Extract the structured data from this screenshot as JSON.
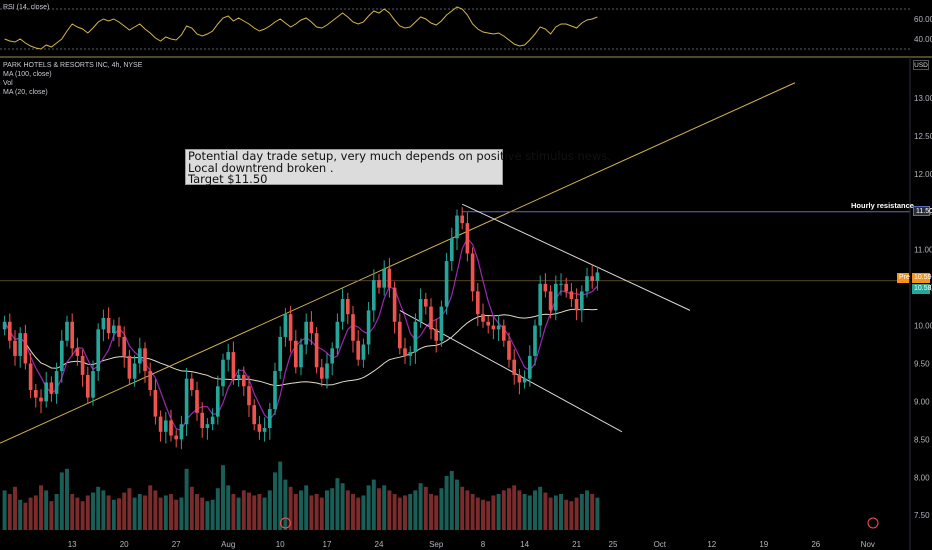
{
  "rsi": {
    "label": "RSI (14, close)",
    "ticks": [
      "60.00",
      "40.00"
    ],
    "tick_values": [
      60,
      40
    ],
    "ylim": [
      25,
      75
    ],
    "color": "#d4b44c",
    "values": [
      40,
      38,
      37,
      40,
      36,
      33,
      31,
      30,
      34,
      32,
      36,
      40,
      48,
      55,
      52,
      50,
      46,
      51,
      57,
      60,
      58,
      60,
      57,
      53,
      49,
      52,
      55,
      50,
      46,
      41,
      38,
      42,
      40,
      39,
      44,
      53,
      51,
      45,
      43,
      45,
      48,
      55,
      61,
      63,
      58,
      61,
      58,
      55,
      51,
      48,
      50,
      53,
      57,
      60,
      56,
      52,
      55,
      59,
      61,
      57,
      52,
      51,
      54,
      58,
      62,
      66,
      62,
      57,
      55,
      57,
      63,
      68,
      66,
      70,
      66,
      59,
      53,
      51,
      52,
      57,
      62,
      60,
      56,
      54,
      58,
      64,
      68,
      72,
      70,
      64,
      55,
      50,
      47,
      46,
      45,
      46,
      43,
      39,
      35,
      33,
      34,
      39,
      45,
      52,
      50,
      45,
      52,
      55,
      55,
      53,
      51,
      56,
      59,
      60,
      62
    ],
    "levels": [
      70,
      30
    ]
  },
  "legend": {
    "title": "PARK HOTELS & RESORTS INC, 4h, NYSE",
    "items": [
      "MA (100, close)",
      "Vol",
      "MA (20, close)"
    ]
  },
  "annotation": {
    "lines": [
      "Potential day trade setup, very much depends on positive stimulus news.",
      "Local downtrend broken .",
      "Target $11.50"
    ]
  },
  "resistance": {
    "label": "Hourly resistance",
    "price": "11.50",
    "value": 11.5
  },
  "price_tags": {
    "current": "10.59",
    "current_prefix": "Pre",
    "current_value": 10.59,
    "second": "10.58",
    "second_value": 10.58,
    "currency": "USD"
  },
  "colors": {
    "up": "#26a69a",
    "down": "#ef5350",
    "vol_up": "#1a5e58",
    "vol_down": "#7a2b2b",
    "ma20": "#9c27b0",
    "ma100": "#e0dcc8",
    "trend": "#d4b44c",
    "resistance": "#5c6bc0",
    "channel": "#d8d8d8",
    "tag_current": "#f7931a",
    "tag_second": "#26a69a"
  },
  "chart_data": {
    "type": "candlestick",
    "ylim": [
      7.2,
      13.5
    ],
    "y_ticks": [
      "13.00",
      "12.50",
      "12.00",
      "11.50",
      "11.00",
      "10.50",
      "10.00",
      "9.50",
      "9.00",
      "8.50",
      "8.00",
      "7.50"
    ],
    "y_tick_values": [
      13.0,
      12.5,
      12.0,
      11.5,
      11.0,
      10.5,
      10.0,
      9.5,
      9.0,
      8.5,
      8.0,
      7.5
    ],
    "x_ticks": [
      "13",
      "20",
      "27",
      "Aug",
      "10",
      "17",
      "24",
      "Sep",
      "8",
      "14",
      "21",
      "25",
      "Oct",
      "12",
      "19",
      "26",
      "Nov"
    ],
    "x_tick_bars": [
      13,
      23,
      33,
      43,
      53,
      62,
      72,
      83,
      92,
      100,
      110,
      117,
      126,
      136,
      146,
      156,
      166
    ],
    "total_slots": 175,
    "close": [
      10.05,
      9.8,
      9.6,
      9.9,
      9.5,
      9.15,
      9.05,
      9.0,
      9.25,
      9.1,
      9.4,
      9.8,
      10.05,
      9.7,
      9.6,
      9.35,
      9.05,
      9.4,
      9.95,
      10.1,
      9.9,
      10.0,
      9.85,
      9.6,
      9.3,
      9.5,
      9.7,
      9.4,
      9.15,
      8.8,
      8.6,
      8.75,
      8.55,
      8.5,
      8.7,
      9.3,
      9.15,
      8.85,
      8.65,
      8.7,
      8.8,
      9.2,
      9.55,
      9.65,
      9.3,
      9.35,
      9.2,
      8.95,
      8.7,
      8.6,
      8.65,
      8.9,
      9.4,
      9.85,
      10.15,
      9.8,
      9.45,
      9.75,
      10.05,
      9.9,
      9.45,
      9.3,
      9.5,
      9.7,
      10.05,
      10.35,
      10.15,
      9.8,
      9.55,
      9.75,
      10.2,
      10.6,
      10.5,
      10.75,
      10.5,
      10.05,
      9.7,
      9.6,
      9.65,
      10.05,
      10.35,
      10.25,
      9.95,
      9.8,
      10.25,
      10.85,
      11.15,
      11.45,
      11.35,
      10.95,
      10.45,
      10.15,
      10.05,
      10.0,
      9.95,
      10.0,
      9.8,
      9.55,
      9.35,
      9.25,
      9.3,
      9.6,
      10.0,
      10.55,
      10.45,
      10.2,
      10.55,
      10.55,
      10.45,
      10.35,
      10.2,
      10.45,
      10.65,
      10.59,
      10.7
    ],
    "volume": [
      0.55,
      0.5,
      0.6,
      0.42,
      0.38,
      0.45,
      0.48,
      0.62,
      0.55,
      0.4,
      0.5,
      0.8,
      0.85,
      0.5,
      0.45,
      0.4,
      0.48,
      0.52,
      0.6,
      0.55,
      0.48,
      0.42,
      0.44,
      0.52,
      0.58,
      0.45,
      0.5,
      0.48,
      0.62,
      0.55,
      0.45,
      0.48,
      0.5,
      0.42,
      0.45,
      0.85,
      0.6,
      0.5,
      0.45,
      0.4,
      0.42,
      0.58,
      0.9,
      0.62,
      0.5,
      0.45,
      0.55,
      0.52,
      0.48,
      0.5,
      0.45,
      0.55,
      0.8,
      0.95,
      0.7,
      0.6,
      0.5,
      0.55,
      0.62,
      0.48,
      0.5,
      0.45,
      0.55,
      0.58,
      0.72,
      0.65,
      0.55,
      0.5,
      0.45,
      0.48,
      0.62,
      0.7,
      0.58,
      0.62,
      0.55,
      0.5,
      0.45,
      0.48,
      0.5,
      0.55,
      0.65,
      0.6,
      0.5,
      0.48,
      0.58,
      0.75,
      0.82,
      0.7,
      0.6,
      0.55,
      0.5,
      0.45,
      0.42,
      0.4,
      0.48,
      0.5,
      0.55,
      0.58,
      0.62,
      0.55,
      0.5,
      0.48,
      0.55,
      0.6,
      0.52,
      0.45,
      0.48,
      0.5,
      0.42,
      0.4,
      0.45,
      0.5,
      0.55,
      0.5,
      0.45
    ]
  }
}
